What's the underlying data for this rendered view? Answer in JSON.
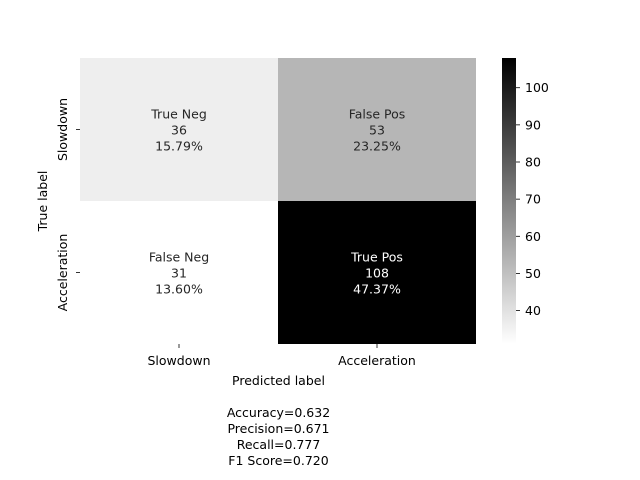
{
  "chart_data": {
    "type": "heatmap",
    "colormap": "Greys",
    "value_range": [
      31,
      108
    ],
    "xlabel": "Predicted label",
    "ylabel": "True label",
    "x_ticklabels": [
      "Slowdown",
      "Acceleration"
    ],
    "y_ticklabels": [
      "Slowdown",
      "Acceleration"
    ],
    "cells": [
      [
        {
          "label": "True Neg",
          "count": "36",
          "value": 36,
          "percent": "15.79%"
        },
        {
          "label": "False Pos",
          "count": "53",
          "value": 53,
          "percent": "23.25%"
        }
      ],
      [
        {
          "label": "False Neg",
          "count": "31",
          "value": 31,
          "percent": "13.60%"
        },
        {
          "label": "True Pos",
          "count": "108",
          "value": 108,
          "percent": "47.37%"
        }
      ]
    ],
    "colorbar_ticks": [
      "40",
      "50",
      "60",
      "70",
      "80",
      "90",
      "100"
    ],
    "colorbar_tick_values": [
      40,
      50,
      60,
      70,
      80,
      90,
      100
    ],
    "stats": [
      "Accuracy=0.632",
      "Precision=0.671",
      "Recall=0.777",
      "F1 Score=0.720"
    ]
  }
}
